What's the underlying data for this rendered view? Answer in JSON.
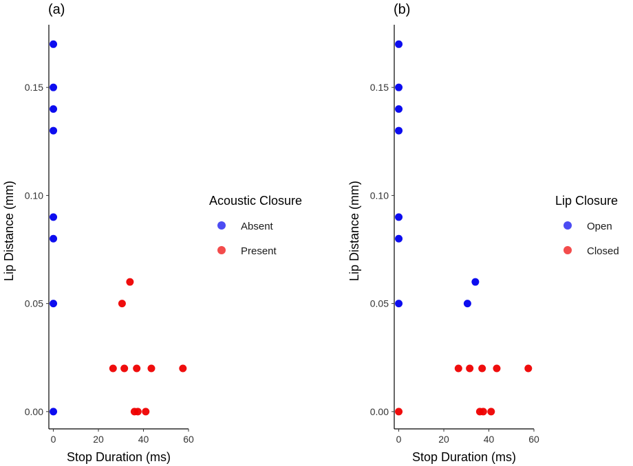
{
  "chart_data": [
    {
      "type": "scatter",
      "panel_tag": "(a)",
      "xlabel": "Stop Duration (ms)",
      "ylabel": "Lip Distance (mm)",
      "xlim": [
        -2,
        60
      ],
      "ylim": [
        -0.008,
        0.179
      ],
      "xticks": [
        "0",
        "20",
        "40",
        "60"
      ],
      "xtick_values": [
        0,
        20,
        40,
        60
      ],
      "yticks": [
        "0.00",
        "0.05",
        "0.10",
        "0.15"
      ],
      "ytick_values": [
        0,
        0.05,
        0.1,
        0.15
      ],
      "legend": {
        "title": "Acoustic Closure",
        "entries": [
          {
            "label": "Absent",
            "color": "#0000ee"
          },
          {
            "label": "Present",
            "color": "#ee0000"
          }
        ]
      },
      "series": [
        {
          "name": "Absent",
          "color": "#0000ee",
          "points": [
            [
              0,
              0.17
            ],
            [
              0,
              0.15
            ],
            [
              0,
              0.14
            ],
            [
              0,
              0.13
            ],
            [
              0,
              0.09
            ],
            [
              0,
              0.08
            ],
            [
              0,
              0.05
            ],
            [
              0,
              0.0
            ]
          ]
        },
        {
          "name": "Present",
          "color": "#ee0000",
          "points": [
            [
              34,
              0.06
            ],
            [
              30.5,
              0.05
            ],
            [
              26.5,
              0.02
            ],
            [
              31.5,
              0.02
            ],
            [
              37,
              0.02
            ],
            [
              43.5,
              0.02
            ],
            [
              57.5,
              0.02
            ],
            [
              36,
              0.0
            ],
            [
              37.5,
              0.0
            ],
            [
              41,
              0.0
            ]
          ]
        }
      ]
    },
    {
      "type": "scatter",
      "panel_tag": "(b)",
      "xlabel": "Stop Duration (ms)",
      "ylabel": "Lip Distance (mm)",
      "xlim": [
        -2,
        60
      ],
      "ylim": [
        -0.008,
        0.179
      ],
      "xticks": [
        "0",
        "20",
        "40",
        "60"
      ],
      "xtick_values": [
        0,
        20,
        40,
        60
      ],
      "yticks": [
        "0.00",
        "0.05",
        "0.10",
        "0.15"
      ],
      "ytick_values": [
        0,
        0.05,
        0.1,
        0.15
      ],
      "legend": {
        "title": "Lip Closure",
        "entries": [
          {
            "label": "Open",
            "color": "#0000ee"
          },
          {
            "label": "Closed",
            "color": "#ee0000"
          }
        ]
      },
      "series": [
        {
          "name": "Open",
          "color": "#0000ee",
          "points": [
            [
              0,
              0.17
            ],
            [
              0,
              0.15
            ],
            [
              0,
              0.14
            ],
            [
              0,
              0.13
            ],
            [
              0,
              0.09
            ],
            [
              0,
              0.08
            ],
            [
              34,
              0.06
            ],
            [
              30.5,
              0.05
            ],
            [
              0,
              0.05
            ]
          ]
        },
        {
          "name": "Closed",
          "color": "#ee0000",
          "points": [
            [
              26.5,
              0.02
            ],
            [
              31.5,
              0.02
            ],
            [
              37,
              0.02
            ],
            [
              43.5,
              0.02
            ],
            [
              57.5,
              0.02
            ],
            [
              0,
              0.0
            ],
            [
              36,
              0.0
            ],
            [
              37.5,
              0.0
            ],
            [
              41,
              0.0
            ]
          ]
        }
      ]
    }
  ]
}
